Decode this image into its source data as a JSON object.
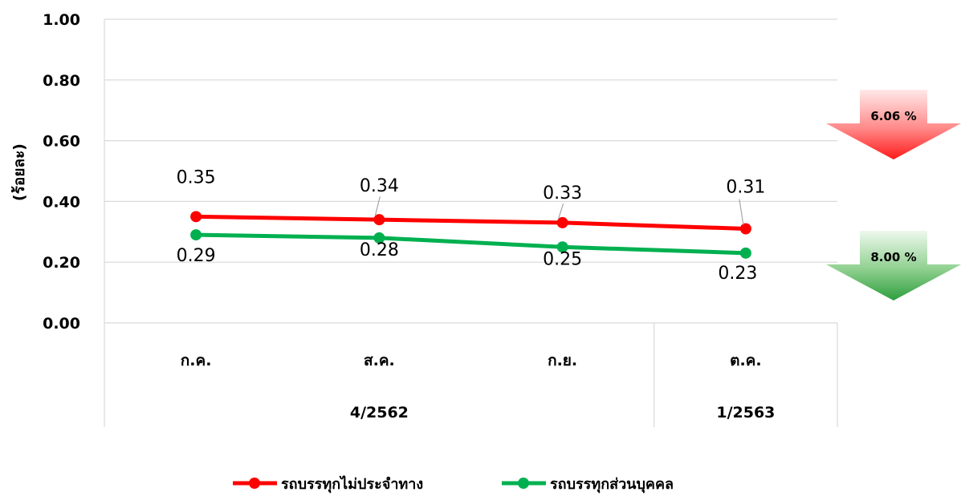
{
  "chart_data": {
    "type": "line",
    "ylabel": "(ร้อยละ)",
    "ylim": [
      0,
      1.0
    ],
    "yticks": [
      "0.00",
      "0.20",
      "0.40",
      "0.60",
      "0.80",
      "1.00"
    ],
    "ytick_values": [
      0,
      0.2,
      0.4,
      0.6,
      0.8,
      1.0
    ],
    "categories": [
      "ก.ค.",
      "ส.ค.",
      "ก.ย.",
      "ต.ค."
    ],
    "groups": [
      {
        "label": "4/2562",
        "span": [
          0,
          2
        ]
      },
      {
        "label": "1/2563",
        "span": [
          3,
          3
        ]
      }
    ],
    "grid": true,
    "legend_position": "bottom",
    "series": [
      {
        "name": "รถบรรทุกไม่ประจำทาง",
        "color": "#ff0000",
        "values": [
          0.35,
          0.34,
          0.33,
          0.31
        ],
        "labels": [
          "0.35",
          "0.34",
          "0.33",
          "0.31"
        ]
      },
      {
        "name": "รถบรรทุกส่วนบุคคล",
        "color": "#00b050",
        "values": [
          0.29,
          0.28,
          0.25,
          0.23
        ],
        "labels": [
          "0.29",
          "0.28",
          "0.25",
          "0.23"
        ]
      }
    ],
    "annotations": [
      {
        "text": "6.06 %",
        "direction": "down",
        "color": "red",
        "series": 0
      },
      {
        "text": "8.00 %",
        "direction": "down",
        "color": "green",
        "series": 1
      }
    ]
  }
}
